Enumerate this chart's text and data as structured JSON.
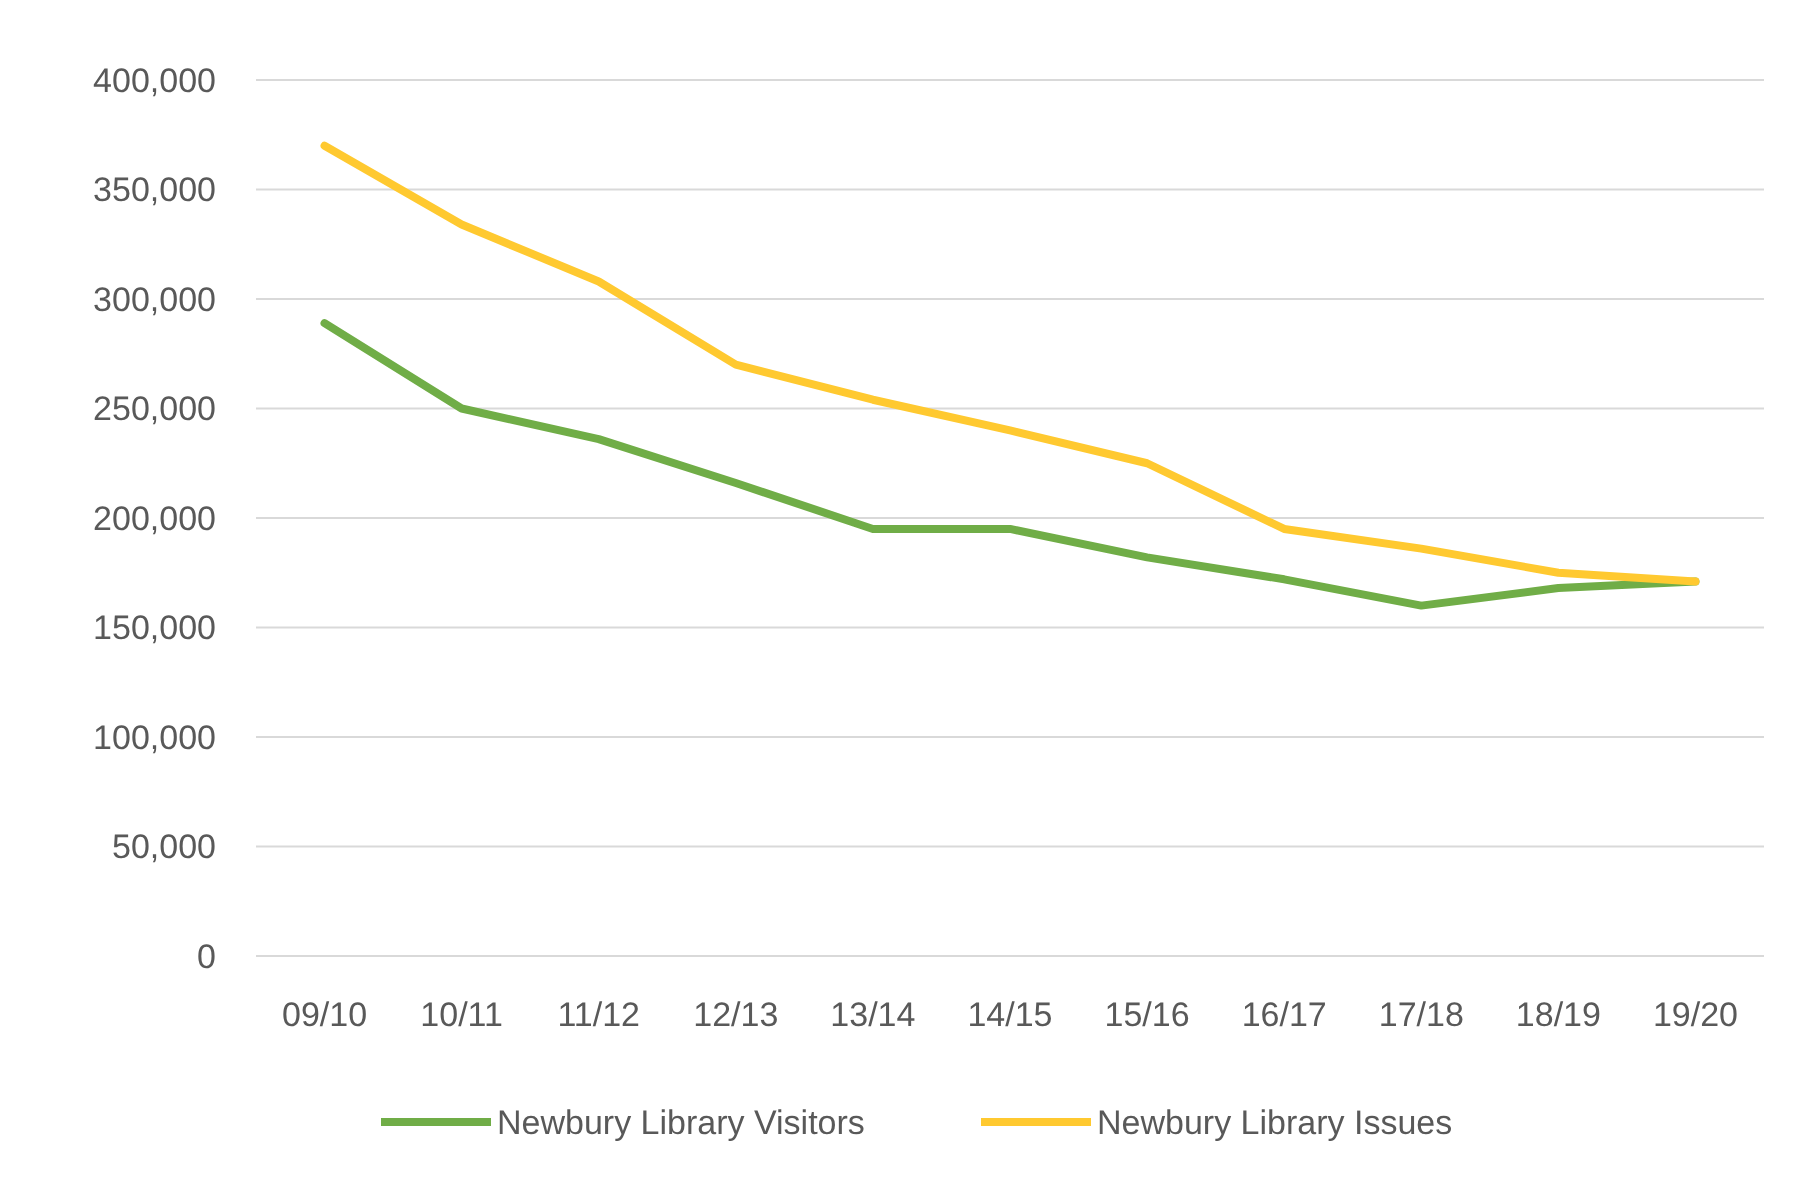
{
  "chart_data": {
    "type": "line",
    "categories": [
      "09/10",
      "10/11",
      "11/12",
      "12/13",
      "13/14",
      "14/15",
      "15/16",
      "16/17",
      "17/18",
      "18/19",
      "19/20"
    ],
    "series": [
      {
        "name": "Newbury Library Visitors",
        "color": "#70ad47",
        "values": [
          289000,
          250000,
          236000,
          216000,
          195000,
          195000,
          182000,
          172000,
          160000,
          168000,
          171000
        ]
      },
      {
        "name": "Newbury Library Issues",
        "color": "#ffc930",
        "values": [
          370000,
          334000,
          308000,
          270000,
          254000,
          240000,
          225000,
          195000,
          186000,
          175000,
          171000
        ]
      }
    ],
    "ylim": [
      0,
      400000
    ],
    "yticks": [
      {
        "value": 0,
        "label": "0"
      },
      {
        "value": 50000,
        "label": "50,000"
      },
      {
        "value": 100000,
        "label": "100,000"
      },
      {
        "value": 150000,
        "label": "150,000"
      },
      {
        "value": 200000,
        "label": "200,000"
      },
      {
        "value": 250000,
        "label": "250,000"
      },
      {
        "value": 300000,
        "label": "300,000"
      },
      {
        "value": 350000,
        "label": "350,000"
      },
      {
        "value": 400000,
        "label": "400,000"
      }
    ],
    "grid": "y",
    "legend": "bottom",
    "marker": "none",
    "line_style": "solid"
  }
}
